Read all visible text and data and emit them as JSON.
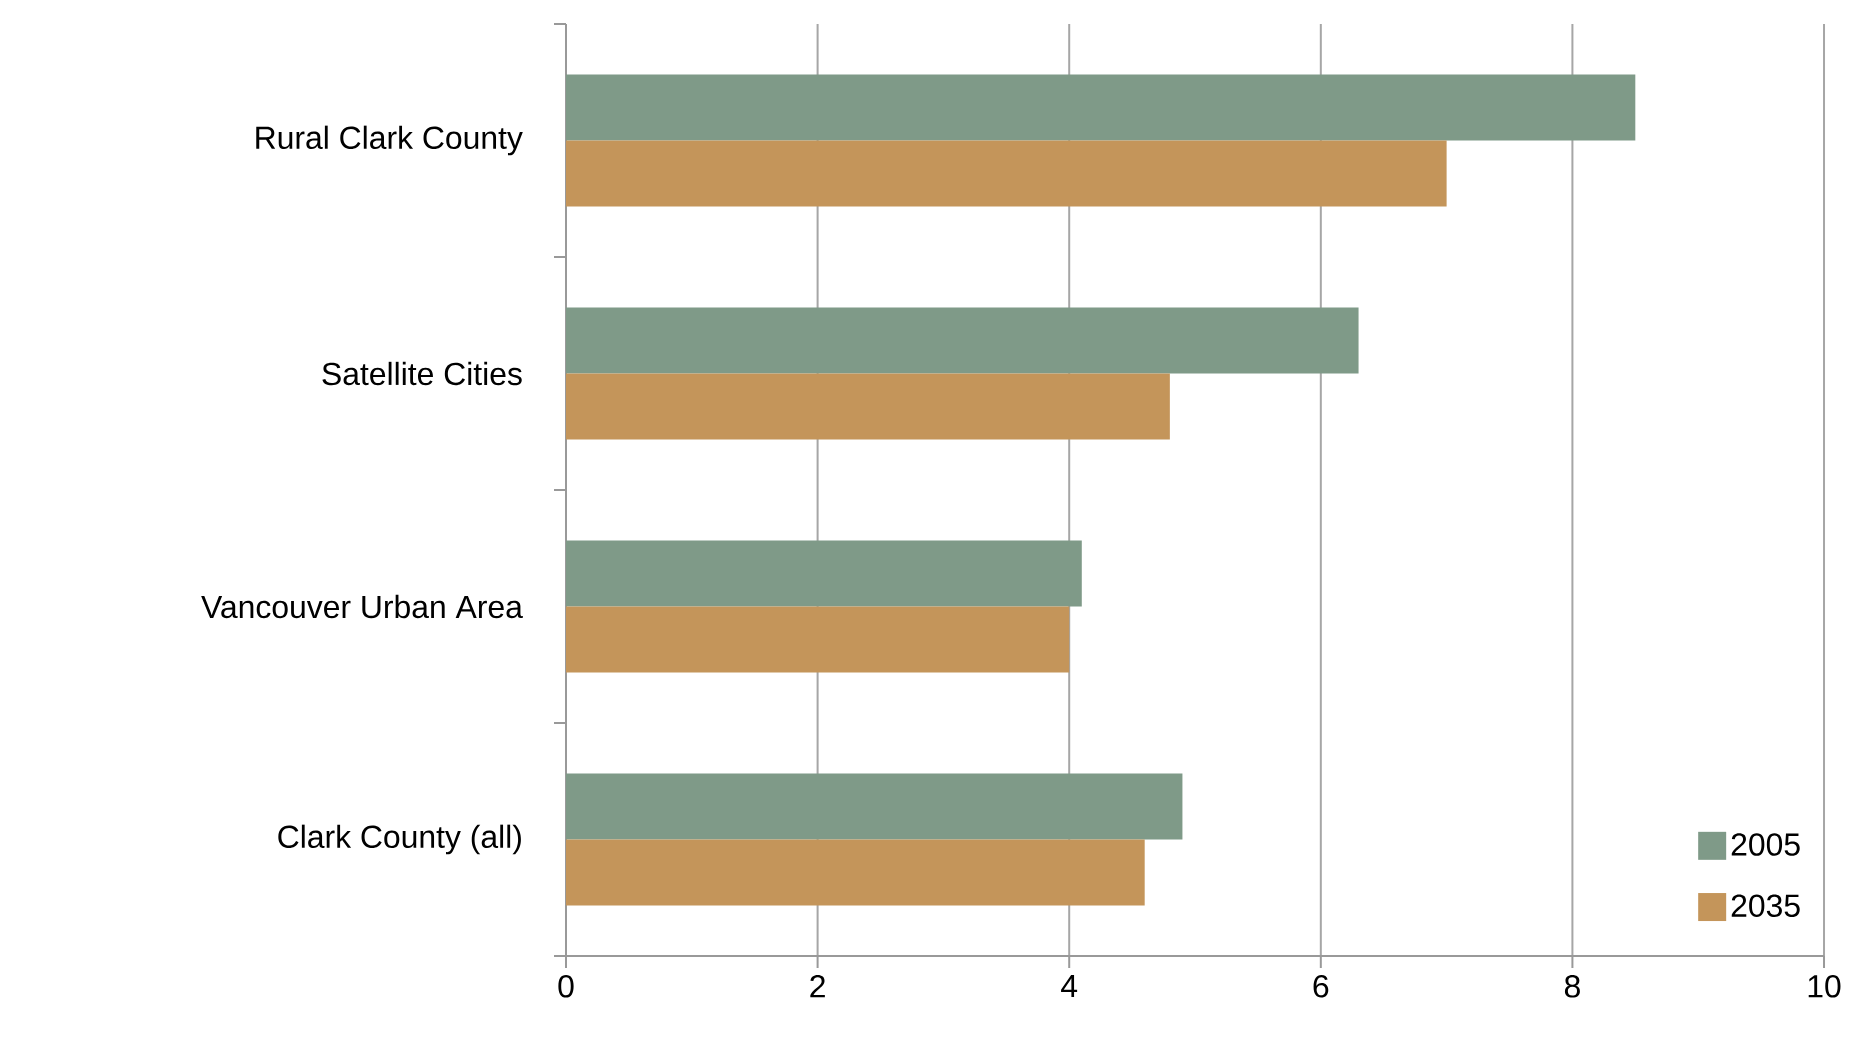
{
  "chart_data": {
    "type": "bar",
    "orientation": "horizontal",
    "categories": [
      "Rural Clark County",
      "Satellite Cities",
      "Vancouver Urban Area",
      "Clark County (all)"
    ],
    "series": [
      {
        "name": "2005",
        "color": "#7f9a88",
        "values": [
          8.5,
          6.3,
          4.1,
          4.9
        ]
      },
      {
        "name": "2035",
        "color": "#c4955a",
        "values": [
          7.0,
          4.8,
          4.0,
          4.6
        ]
      }
    ],
    "xlim": [
      0,
      10
    ],
    "xticks": [
      0,
      2,
      4,
      6,
      8,
      10
    ],
    "grid": "x",
    "legend": "bottom right"
  }
}
